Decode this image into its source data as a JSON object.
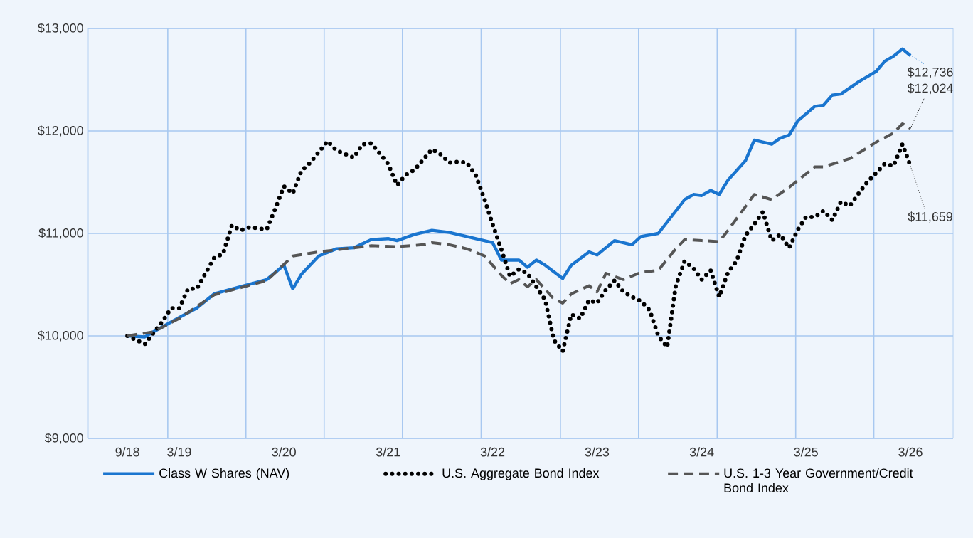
{
  "chart_data": {
    "type": "line",
    "xlim": [
      "2018-04-17",
      "2026-07-28"
    ],
    "ylim": [
      9000,
      13000
    ],
    "xticks": [
      {
        "value": "2018-09",
        "label": "9/18"
      },
      {
        "value": "2019-03",
        "label": "3/19"
      },
      {
        "value": "2020-03",
        "label": "3/20"
      },
      {
        "value": "2021-03",
        "label": "3/21"
      },
      {
        "value": "2022-03",
        "label": "3/22"
      },
      {
        "value": "2023-03",
        "label": "3/23"
      },
      {
        "value": "2024-03",
        "label": "3/24"
      },
      {
        "value": "2025-03",
        "label": "3/25"
      },
      {
        "value": "2026-03",
        "label": "3/26"
      },
      {
        "value": "2019-01-20",
        "label": null
      },
      {
        "value": "2019-10-20",
        "label": null
      },
      {
        "value": "2020-07-20",
        "label": null
      },
      {
        "value": "2021-04-20",
        "label": null
      },
      {
        "value": "2022-01-20",
        "label": null
      },
      {
        "value": "2022-10-24",
        "label": null
      },
      {
        "value": "2023-07-24",
        "label": null
      },
      {
        "value": "2024-04-24",
        "label": null
      },
      {
        "value": "2025-01-24",
        "label": null
      },
      {
        "value": "2025-10-24",
        "label": null
      }
    ],
    "yticks": [
      {
        "value": 9000,
        "label": "$9,000"
      },
      {
        "value": 10000,
        "label": "$10,000"
      },
      {
        "value": 11000,
        "label": "$11,000"
      },
      {
        "value": 12000,
        "label": "$12,000"
      },
      {
        "value": 13000,
        "label": "$13,000"
      }
    ],
    "grid": true,
    "legend": "bottom",
    "marker": "none",
    "series": [
      {
        "name": "Class W Shares (NAV)",
        "color": "#1a75cf",
        "line_style": "solid",
        "x": [
          "2018-09",
          "2018-11",
          "2018-12",
          "2019-03",
          "2019-05",
          "2019-07",
          "2019-10",
          "2020-01",
          "2020-03",
          "2020-04",
          "2020-05",
          "2020-07",
          "2020-09",
          "2020-11",
          "2021-01",
          "2021-03",
          "2021-04",
          "2021-06",
          "2021-08",
          "2021-10",
          "2021-12",
          "2022-03",
          "2022-04",
          "2022-06",
          "2022-07",
          "2022-08",
          "2022-09",
          "2022-11",
          "2022-12",
          "2023-02",
          "2023-03",
          "2023-05",
          "2023-07",
          "2023-08",
          "2023-10",
          "2024-01",
          "2024-02",
          "2024-03",
          "2024-04",
          "2024-05",
          "2024-06",
          "2024-08",
          "2024-09",
          "2024-11",
          "2024-12",
          "2025-01",
          "2025-02",
          "2025-04",
          "2025-05",
          "2025-06",
          "2025-07",
          "2025-09",
          "2025-11",
          "2025-12",
          "2026-01",
          "2026-02",
          "2026-03"
        ],
        "values": [
          10000,
          9990,
          10040,
          10180,
          10270,
          10410,
          10480,
          10550,
          10690,
          10460,
          10600,
          10780,
          10850,
          10860,
          10940,
          10950,
          10930,
          10990,
          11030,
          11010,
          10970,
          10910,
          10740,
          10740,
          10670,
          10740,
          10690,
          10560,
          10690,
          10820,
          10790,
          10930,
          10890,
          10970,
          11000,
          11330,
          11380,
          11370,
          11420,
          11380,
          11520,
          11710,
          11910,
          11870,
          11930,
          11960,
          12100,
          12240,
          12250,
          12350,
          12360,
          12480,
          12580,
          12680,
          12730,
          12800,
          12736
        ]
      },
      {
        "name": "U.S. Aggregate Bond Index",
        "color": "#000000",
        "line_style": "dotted",
        "x": [
          "2018-09",
          "2018-11",
          "2019-01",
          "2019-02",
          "2019-03",
          "2019-04",
          "2019-05",
          "2019-07",
          "2019-08",
          "2019-09",
          "2019-10",
          "2019-11",
          "2020-01",
          "2020-02",
          "2020-03",
          "2020-04",
          "2020-05",
          "2020-06",
          "2020-08",
          "2020-09",
          "2020-11",
          "2020-12",
          "2021-01",
          "2021-03",
          "2021-04",
          "2021-05",
          "2021-06",
          "2021-08",
          "2021-09",
          "2021-10",
          "2021-11",
          "2021-12",
          "2022-01",
          "2022-02",
          "2022-03",
          "2022-04",
          "2022-05",
          "2022-06",
          "2022-07",
          "2022-09",
          "2022-10",
          "2022-11",
          "2022-12",
          "2023-01",
          "2023-02",
          "2023-03",
          "2023-04",
          "2023-05",
          "2023-06",
          "2023-07",
          "2023-08",
          "2023-09",
          "2023-10",
          "2023-11",
          "2023-12",
          "2024-01",
          "2024-02",
          "2024-03",
          "2024-04",
          "2024-05",
          "2024-06",
          "2024-07",
          "2024-08",
          "2024-09",
          "2024-10",
          "2024-11",
          "2024-12",
          "2025-01",
          "2025-02",
          "2025-03",
          "2025-04",
          "2025-05",
          "2025-06",
          "2025-07",
          "2025-08",
          "2025-09",
          "2025-10",
          "2025-11",
          "2025-12",
          "2026-01",
          "2026-02",
          "2026-03"
        ],
        "values": [
          10000,
          9920,
          10140,
          10270,
          10270,
          10460,
          10460,
          10760,
          10800,
          11080,
          11030,
          11060,
          11040,
          11250,
          11460,
          11390,
          11610,
          11690,
          11900,
          11810,
          11740,
          11870,
          11880,
          11680,
          11470,
          11570,
          11620,
          11820,
          11770,
          11690,
          11700,
          11690,
          11570,
          11330,
          11090,
          10840,
          10580,
          10650,
          10610,
          10350,
          9960,
          9850,
          10210,
          10170,
          10350,
          10320,
          10450,
          10540,
          10430,
          10380,
          10340,
          10250,
          10000,
          9890,
          10490,
          10730,
          10660,
          10550,
          10640,
          10380,
          10620,
          10730,
          10980,
          11090,
          11210,
          10930,
          10990,
          10860,
          11040,
          11160,
          11160,
          11220,
          11130,
          11310,
          11270,
          11390,
          11500,
          11590,
          11680,
          11660,
          11870,
          11659
        ]
      },
      {
        "name": "U.S. 1-3 Year Government/Credit Bond Index",
        "color": "#555555",
        "line_style": "dashed",
        "x": [
          "2018-09",
          "2018-12",
          "2019-03",
          "2019-07",
          "2020-01",
          "2020-04",
          "2020-07",
          "2020-11",
          "2021-01",
          "2021-04",
          "2021-07",
          "2021-08",
          "2021-10",
          "2021-12",
          "2022-02",
          "2022-04",
          "2022-05",
          "2022-06",
          "2022-07",
          "2022-08",
          "2022-10",
          "2022-11",
          "2022-12",
          "2023-02",
          "2023-03",
          "2023-04",
          "2023-06",
          "2023-08",
          "2023-10",
          "2023-12",
          "2024-01",
          "2024-03",
          "2024-05",
          "2024-06",
          "2024-09",
          "2024-11",
          "2025-01",
          "2025-04",
          "2025-05",
          "2025-08",
          "2025-11",
          "2026-01",
          "2026-02",
          "2026-03"
        ],
        "values": [
          10000,
          10040,
          10170,
          10400,
          10540,
          10780,
          10820,
          10860,
          10880,
          10870,
          10890,
          10910,
          10890,
          10850,
          10780,
          10590,
          10510,
          10550,
          10480,
          10550,
          10360,
          10320,
          10410,
          10490,
          10430,
          10610,
          10550,
          10620,
          10640,
          10850,
          10940,
          10930,
          10920,
          11030,
          11380,
          11330,
          11450,
          11650,
          11650,
          11730,
          11890,
          11980,
          12070,
          12024
        ]
      }
    ],
    "annotations": [
      {
        "text": "$12,736",
        "x": "2026-03",
        "y": 12736
      },
      {
        "text": "$12,024",
        "x": "2026-03",
        "y": 12024
      },
      {
        "text": "$11,659",
        "x": "2026-03",
        "y": 11659
      }
    ]
  }
}
